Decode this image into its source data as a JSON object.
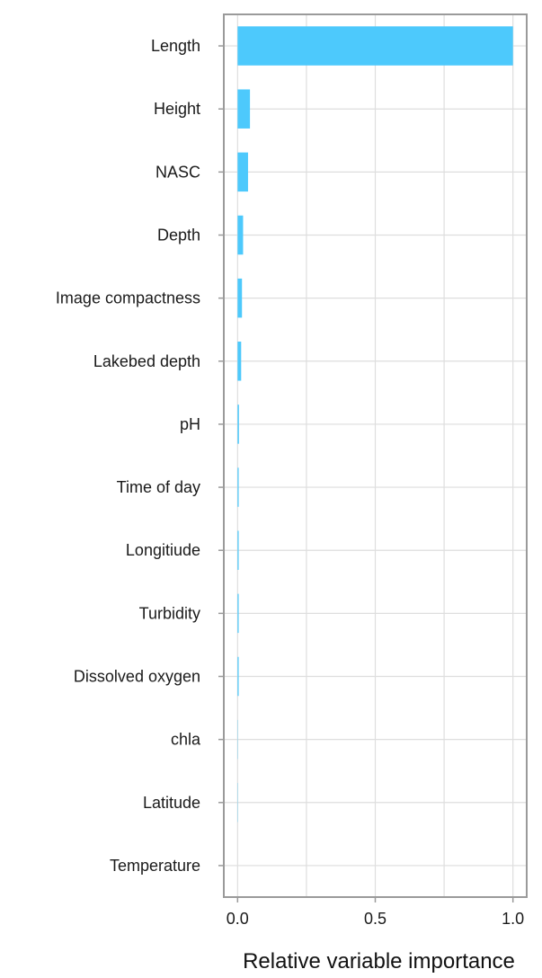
{
  "chart_data": {
    "type": "bar",
    "orientation": "horizontal",
    "categories": [
      "Length",
      "Height",
      "NASC",
      "Depth",
      "Image compactness",
      "Lakebed depth",
      "pH",
      "Time of day",
      "Longitiude",
      "Turbidity",
      "Dissolved oxygen",
      "chla",
      "Latitude",
      "Temperature"
    ],
    "values": [
      1.0,
      0.045,
      0.038,
      0.02,
      0.016,
      0.013,
      0.005,
      0.004,
      0.004,
      0.004,
      0.004,
      0.001,
      0.001,
      0.0
    ],
    "title": "",
    "xlabel": "Relative variable importance",
    "ylabel": "",
    "xlim": [
      -0.05,
      1.05
    ],
    "xticks": [
      0.0,
      0.5,
      1.0
    ],
    "xtick_labels": [
      "0.0",
      "0.5",
      "1.0"
    ],
    "grid": true,
    "bar_color": "#4dc9fc",
    "grid_color": "#dedede",
    "frame_color": "#9a9a9a"
  }
}
